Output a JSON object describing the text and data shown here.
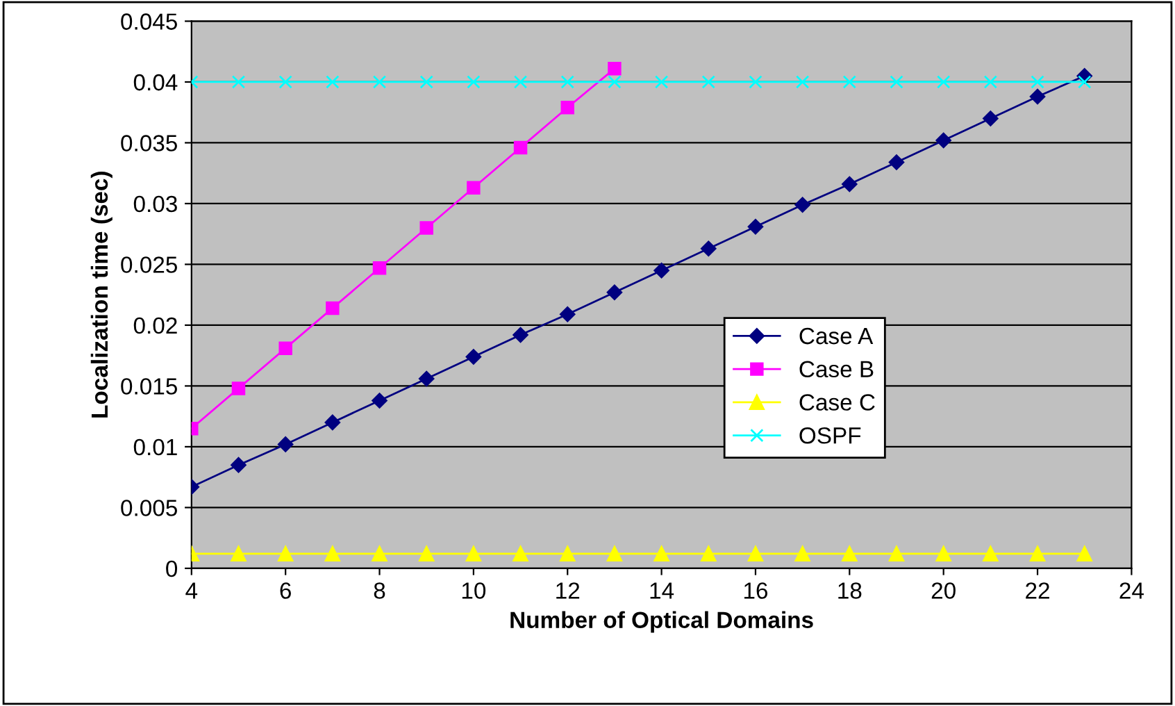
{
  "chart_data": {
    "type": "line",
    "xlabel": "Number of Optical Domains",
    "ylabel": "Localization time (sec)",
    "xlim": [
      4,
      24
    ],
    "xticks": [
      4,
      6,
      8,
      10,
      12,
      14,
      16,
      18,
      20,
      22,
      24
    ],
    "ylim": [
      0,
      0.045
    ],
    "yticks": [
      0,
      0.005,
      0.01,
      0.015,
      0.02,
      0.025,
      0.03,
      0.035,
      0.04,
      0.045
    ],
    "grid": "y",
    "legend": "right",
    "line_style": "solid",
    "series": [
      {
        "name": "Case A",
        "color": "#000080",
        "marker": "diamond",
        "x": [
          4,
          5,
          6,
          7,
          8,
          9,
          10,
          11,
          12,
          13,
          14,
          15,
          16,
          17,
          18,
          19,
          20,
          21,
          22,
          23
        ],
        "values": [
          0.0067,
          0.0085,
          0.0102,
          0.012,
          0.0138,
          0.0156,
          0.0174,
          0.0192,
          0.0209,
          0.0227,
          0.0245,
          0.0263,
          0.0281,
          0.0299,
          0.0316,
          0.0334,
          0.0352,
          0.037,
          0.0388,
          0.0405
        ]
      },
      {
        "name": "Case B",
        "color": "#ff00ff",
        "marker": "square",
        "x": [
          4,
          5,
          6,
          7,
          8,
          9,
          10,
          11,
          12,
          13
        ],
        "values": [
          0.0115,
          0.0148,
          0.0181,
          0.0214,
          0.0247,
          0.028,
          0.0313,
          0.0346,
          0.0379,
          0.0411
        ]
      },
      {
        "name": "Case C",
        "color": "#ffff00",
        "marker": "triangle",
        "x": [
          4,
          5,
          6,
          7,
          8,
          9,
          10,
          11,
          12,
          13,
          14,
          15,
          16,
          17,
          18,
          19,
          20,
          21,
          22,
          23
        ],
        "values": [
          0.0012,
          0.0012,
          0.0012,
          0.0012,
          0.0012,
          0.0012,
          0.0012,
          0.0012,
          0.0012,
          0.0012,
          0.0012,
          0.0012,
          0.0012,
          0.0012,
          0.0012,
          0.0012,
          0.0012,
          0.0012,
          0.0012,
          0.0012
        ]
      },
      {
        "name": "OSPF",
        "color": "#00ffff",
        "marker": "cross",
        "x": [
          4,
          5,
          6,
          7,
          8,
          9,
          10,
          11,
          12,
          13,
          14,
          15,
          16,
          17,
          18,
          19,
          20,
          21,
          22,
          23
        ],
        "values": [
          0.04,
          0.04,
          0.04,
          0.04,
          0.04,
          0.04,
          0.04,
          0.04,
          0.04,
          0.04,
          0.04,
          0.04,
          0.04,
          0.04,
          0.04,
          0.04,
          0.04,
          0.04,
          0.04,
          0.04
        ]
      }
    ]
  }
}
